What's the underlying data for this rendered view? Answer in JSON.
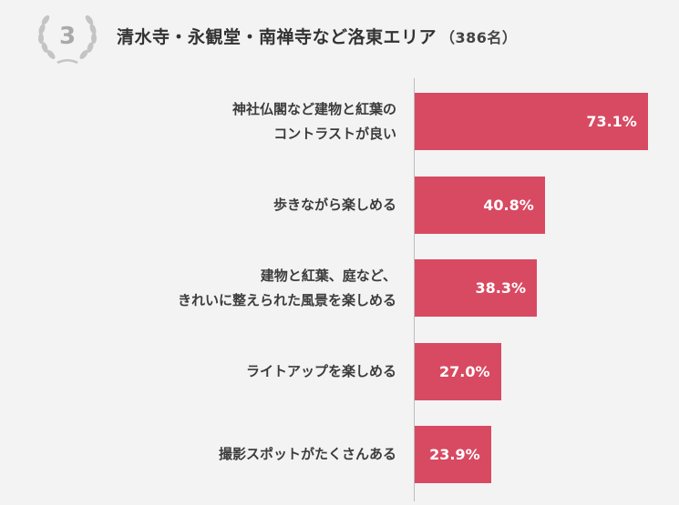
{
  "header": {
    "rank": "3",
    "title": "清水寺・永観堂・南禅寺など洛東エリア",
    "count": "（386名）"
  },
  "chart_data": {
    "type": "bar",
    "orientation": "horizontal",
    "categories": [
      "神社仏閣など建物と紅葉の\nコントラストが良い",
      "歩きながら楽しめる",
      "建物と紅葉、庭など、\nきれいに整えられた風景を楽しめる",
      "ライトアップを楽しめる",
      "撮影スポットがたくさんある"
    ],
    "values": [
      73.1,
      40.8,
      38.3,
      27.0,
      23.9
    ],
    "value_labels": [
      "73.1%",
      "40.8%",
      "38.3%",
      "27.0%",
      "23.9%"
    ],
    "unit": "%",
    "xlim": [
      0,
      100
    ],
    "grid": false,
    "bar_color": "#d84a62"
  }
}
